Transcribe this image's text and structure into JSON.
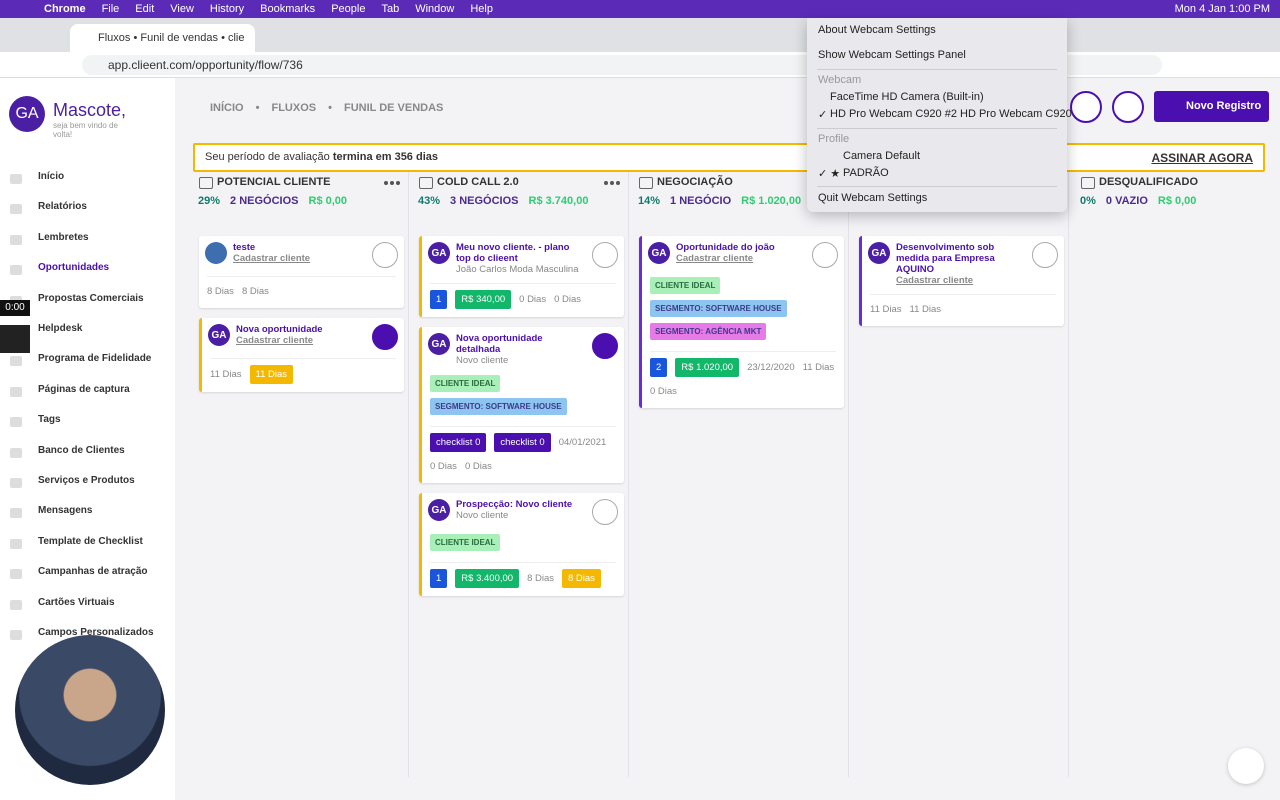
{
  "menubar": {
    "app": "Chrome",
    "items": [
      "File",
      "Edit",
      "View",
      "History",
      "Bookmarks",
      "People",
      "Tab",
      "Window",
      "Help"
    ],
    "clock": "Mon 4 Jan  1:00 PM"
  },
  "browser": {
    "tab_title": "Fluxos • Funil de vendas • clie",
    "url": "app.clieent.com/opportunity/flow/736"
  },
  "sidebar": {
    "avatar": "GA",
    "brand": "Mascote,",
    "tagline": "seja bem vindo de volta!",
    "active": 3,
    "items": [
      "Início",
      "Relatórios",
      "Lembretes",
      "Oportunidades",
      "Propostas Comerciais",
      "Helpdesk",
      "Programa de Fidelidade",
      "Páginas de captura",
      "Tags",
      "Banco de Clientes",
      "Serviços e Produtos",
      "Mensagens",
      "Template de Checklist",
      "Campanhas de atração",
      "Cartões Virtuais",
      "Campos Personalizados"
    ]
  },
  "timer": "0:00",
  "header": {
    "breadcrumb": [
      "INÍCIO",
      "FLUXOS",
      "FUNIL DE VENDAS"
    ],
    "new_button": "Novo Registro"
  },
  "banner": {
    "text": "Seu período de avaliação ",
    "bold": "termina em 356 dias",
    "action": "ASSINAR AGORA"
  },
  "columns": [
    {
      "title": "POTENCIAL CLIENTE",
      "pct": "29%",
      "deals": "2 NEGÓCIOS",
      "amount": "R$ 0,00",
      "menu": true,
      "cards": [
        {
          "avatar": null,
          "title": "teste",
          "subtitle": "Cadastrar cliente",
          "subtitle_link": true,
          "pinned": false,
          "border": null,
          "tags": [],
          "badges": [
            {
              "text": "8 Dias",
              "color": null
            },
            {
              "text": "8 Dias",
              "color": null
            }
          ]
        },
        {
          "avatar": "GA",
          "title": "Nova oportunidade",
          "subtitle": "Cadastrar cliente",
          "subtitle_link": true,
          "pinned": true,
          "border": "#f5b800",
          "tags": [],
          "badges": [
            {
              "text": "11 Dias",
              "color": null
            },
            {
              "text": "11 Dias",
              "color": "#f5b800"
            }
          ]
        }
      ]
    },
    {
      "title": "COLD CALL 2.0",
      "pct": "43%",
      "deals": "3 NEGÓCIOS",
      "amount": "R$ 3.740,00",
      "menu": true,
      "cards": [
        {
          "avatar": "GA",
          "title": "Meu novo cliente. - plano top do clieent",
          "subtitle": "João Carlos Moda Masculina",
          "subtitle_link": false,
          "pinned": false,
          "border": "#f5b800",
          "tags": [],
          "badges": [
            {
              "text": "1",
              "color": "#1a56db"
            },
            {
              "text": "R$ 340,00",
              "color": "#12b76a"
            },
            {
              "text": "0 Dias",
              "color": null
            },
            {
              "text": "0 Dias",
              "color": null
            }
          ]
        },
        {
          "avatar": "GA",
          "title": "Nova oportunidade detalhada",
          "subtitle": "Novo cliente",
          "subtitle_link": false,
          "pinned": true,
          "border": "#f5b800",
          "tags": [
            {
              "text": "CLIENTE IDEAL",
              "color": "#a8f0b8"
            },
            {
              "text": "SEGMENTO: SOFTWARE HOUSE",
              "color": "#8ec5f0"
            }
          ],
          "badges": [
            {
              "text": "checklist 0",
              "color": "#4b0fb0"
            },
            {
              "text": "checklist 0",
              "color": "#4b0fb0"
            },
            {
              "text": "04/01/2021",
              "color": null
            },
            {
              "text": "0 Dias",
              "color": null
            },
            {
              "text": "0 Dias",
              "color": null
            }
          ]
        },
        {
          "avatar": "GA",
          "title": "Prospecção: Novo cliente",
          "subtitle": "Novo cliente",
          "subtitle_link": false,
          "pinned": false,
          "border": "#f5b800",
          "tags": [
            {
              "text": "CLIENTE IDEAL",
              "color": "#a8f0b8"
            }
          ],
          "badges": [
            {
              "text": "1",
              "color": "#1a56db"
            },
            {
              "text": "R$ 3.400,00",
              "color": "#12b76a"
            },
            {
              "text": "8 Dias",
              "color": null
            },
            {
              "text": "8 Dias",
              "color": "#f5b800"
            }
          ]
        }
      ]
    },
    {
      "title": "NEGOCIAÇÃO",
      "pct": "14%",
      "deals": "1 NEGÓCIO",
      "amount": "R$ 1.020,00",
      "menu": false,
      "cards": [
        {
          "avatar": "GA",
          "title": "Oportunidade do joão",
          "subtitle": "Cadastrar cliente",
          "subtitle_link": true,
          "pinned": false,
          "border": "#6a2bd9",
          "tags": [
            {
              "text": "CLIENTE IDEAL",
              "color": "#a8f0b8"
            },
            {
              "text": "SEGMENTO: SOFTWARE HOUSE",
              "color": "#8ec5f0"
            },
            {
              "text": "SEGMENTO: AGÊNCIA MKT",
              "color": "#e67be8"
            }
          ],
          "badges": [
            {
              "text": "2",
              "color": "#1a56db"
            },
            {
              "text": "R$ 1.020,00",
              "color": "#12b76a"
            },
            {
              "text": "23/12/2020",
              "color": null
            },
            {
              "text": "11 Dias",
              "color": null
            },
            {
              "text": "0 Dias",
              "color": null
            }
          ]
        }
      ]
    },
    {
      "title": null,
      "pct": null,
      "deals": null,
      "amount": null,
      "menu": false,
      "cards": [
        {
          "avatar": "GA",
          "title": "Desenvolvimento sob medida para Empresa AQUINO",
          "subtitle": "Cadastrar cliente",
          "subtitle_link": true,
          "pinned": false,
          "border": "#6a2bd9",
          "tags": [],
          "badges": [
            {
              "text": "11 Dias",
              "color": null
            },
            {
              "text": "11 Dias",
              "color": null
            }
          ]
        }
      ]
    },
    {
      "title": "DESQUALIFICADO",
      "pct": "0%",
      "deals": "0 VAZIO",
      "amount": "R$ 0,00",
      "menu": false,
      "cards": []
    }
  ],
  "dropdown": [
    {
      "text": "About Webcam Settings",
      "kind": "item",
      "mark": null
    },
    {
      "text": "Show Webcam Settings Panel",
      "kind": "item",
      "mark": null
    },
    {
      "text": "Webcam",
      "kind": "header",
      "mark": null
    },
    {
      "text": "FaceTime HD Camera (Built-in)",
      "kind": "item",
      "mark": null
    },
    {
      "text": "HD Pro Webcam C920 #2 HD Pro Webcam C920",
      "kind": "item",
      "mark": "✓"
    },
    {
      "text": "Profile",
      "kind": "header",
      "mark": null
    },
    {
      "text": "Camera Default",
      "kind": "sub",
      "mark": null
    },
    {
      "text": "PADRÃO",
      "kind": "sub",
      "mark": "✓ ★"
    },
    {
      "text": "Quit Webcam Settings",
      "kind": "item",
      "mark": null
    }
  ]
}
